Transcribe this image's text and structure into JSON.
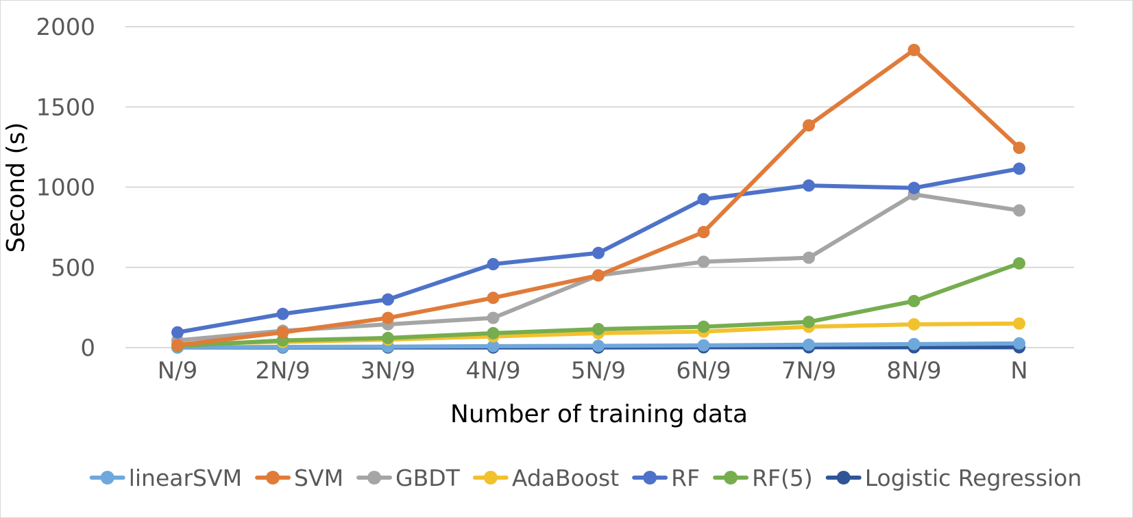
{
  "chart_data": {
    "type": "line",
    "title": "",
    "xlabel": "Number of training data",
    "ylabel": "Second (s)",
    "categories": [
      "N/9",
      "2N/9",
      "3N/9",
      "4N/9",
      "5N/9",
      "6N/9",
      "7N/9",
      "8N/9",
      "N"
    ],
    "y_ticks": [
      "0",
      "500",
      "1000",
      "1500",
      "2000"
    ],
    "ylim": [
      0,
      2000
    ],
    "grid": "horizontal",
    "legend_position": "bottom",
    "series": [
      {
        "name": "linearSVM",
        "color": "#6fa8dc",
        "values": [
          2,
          4,
          6,
          9,
          11,
          14,
          18,
          22,
          26
        ]
      },
      {
        "name": "SVM",
        "color": "#e07b39",
        "values": [
          15,
          95,
          185,
          310,
          450,
          720,
          1385,
          1855,
          1245
        ]
      },
      {
        "name": "GBDT",
        "color": "#a5a5a5",
        "values": [
          45,
          105,
          145,
          185,
          450,
          535,
          560,
          955,
          855
        ]
      },
      {
        "name": "AdaBoost",
        "color": "#f2c12e",
        "values": [
          25,
          35,
          50,
          70,
          90,
          100,
          130,
          145,
          150
        ]
      },
      {
        "name": "RF",
        "color": "#4e72c9",
        "values": [
          95,
          210,
          300,
          520,
          590,
          925,
          1010,
          995,
          1115
        ]
      },
      {
        "name": "RF(5)",
        "color": "#76ad4f",
        "values": [
          10,
          45,
          60,
          90,
          115,
          130,
          160,
          290,
          525
        ]
      },
      {
        "name": "Logistic Regression",
        "color": "#2f5597",
        "values": [
          1,
          1,
          1,
          1,
          1,
          2,
          2,
          2,
          2
        ]
      }
    ]
  }
}
